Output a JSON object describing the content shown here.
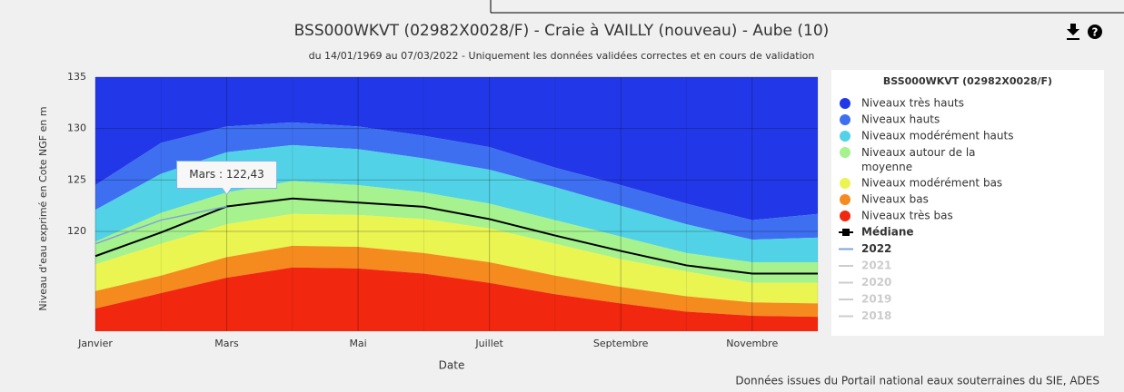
{
  "chart_data": {
    "type": "band-area",
    "title": "BSS000WKVT (02982X0028/F) - Craie à VAILLY (nouveau) - Aube (10)",
    "subtitle": "du 14/01/1969 au 07/03/2022 - Uniquement les données validées correctes et en cours de validation",
    "y_label": "Niveau d'eau exprimé en Cote NGF en m",
    "x_label": "Date",
    "source": "Données issues du Portail national eaux souterraines du SIE, ADES",
    "legend_title": "BSS000WKVT (02982X0028/F)",
    "tooltip": "Mars : 122,43",
    "categories": [
      "Janvier",
      null,
      "Mars",
      null,
      "Mai",
      null,
      "Juillet",
      null,
      "Septembre",
      null,
      "Novembre",
      null
    ],
    "ylim": [
      110.3,
      135
    ],
    "yticks": [
      120,
      125,
      130,
      135
    ],
    "grid": true,
    "bands": [
      {
        "name": "Niveaux très hauts",
        "color": "#2238e8"
      },
      {
        "name": "Niveaux hauts",
        "color": "#3d6ff0",
        "values": [
          124.5,
          128.6,
          130.2,
          130.6,
          130.2,
          129.3,
          128.2,
          126.2,
          124.5,
          122.7,
          121.1,
          121.7
        ]
      },
      {
        "name": "Niveaux modérément hauts",
        "color": "#52d2e6",
        "values": [
          122.1,
          125.6,
          127.7,
          128.4,
          128.0,
          127.1,
          126.0,
          124.3,
          122.5,
          120.7,
          119.2,
          119.4
        ]
      },
      {
        "name": "Niveaux autour de la moyenne",
        "color": "#a6f28e",
        "values": [
          119.0,
          121.8,
          123.8,
          124.9,
          124.5,
          123.8,
          122.7,
          121.1,
          119.5,
          117.9,
          117.0,
          117.0
        ]
      },
      {
        "name": "Niveaux modérément bas",
        "color": "#eaf552",
        "values": [
          116.8,
          118.8,
          120.7,
          121.7,
          121.6,
          121.2,
          120.3,
          118.8,
          117.3,
          116.1,
          115.0,
          115.0
        ]
      },
      {
        "name": "Niveaux bas",
        "color": "#f58b1e",
        "values": [
          114.2,
          115.7,
          117.5,
          118.6,
          118.5,
          117.9,
          117.0,
          115.7,
          114.6,
          113.7,
          113.1,
          113.0
        ]
      },
      {
        "name": "Niveaux très bas",
        "color": "#f2270f",
        "values": [
          112.5,
          114.0,
          115.5,
          116.5,
          116.4,
          115.9,
          115.0,
          113.9,
          113.0,
          112.2,
          111.8,
          111.7
        ]
      }
    ],
    "series": [
      {
        "name": "Médiane",
        "color": "#000000",
        "values": [
          117.6,
          119.9,
          122.43,
          123.2,
          122.8,
          122.4,
          121.2,
          119.6,
          118.1,
          116.7,
          115.9,
          115.9
        ]
      },
      {
        "name": "2022",
        "color": "#7fa6d6",
        "values": [
          118.8,
          121.1,
          122.43,
          null,
          null,
          null,
          null,
          null,
          null,
          null,
          null,
          null
        ]
      }
    ],
    "inactive_series": [
      "2021",
      "2020",
      "2019",
      "2018"
    ]
  }
}
